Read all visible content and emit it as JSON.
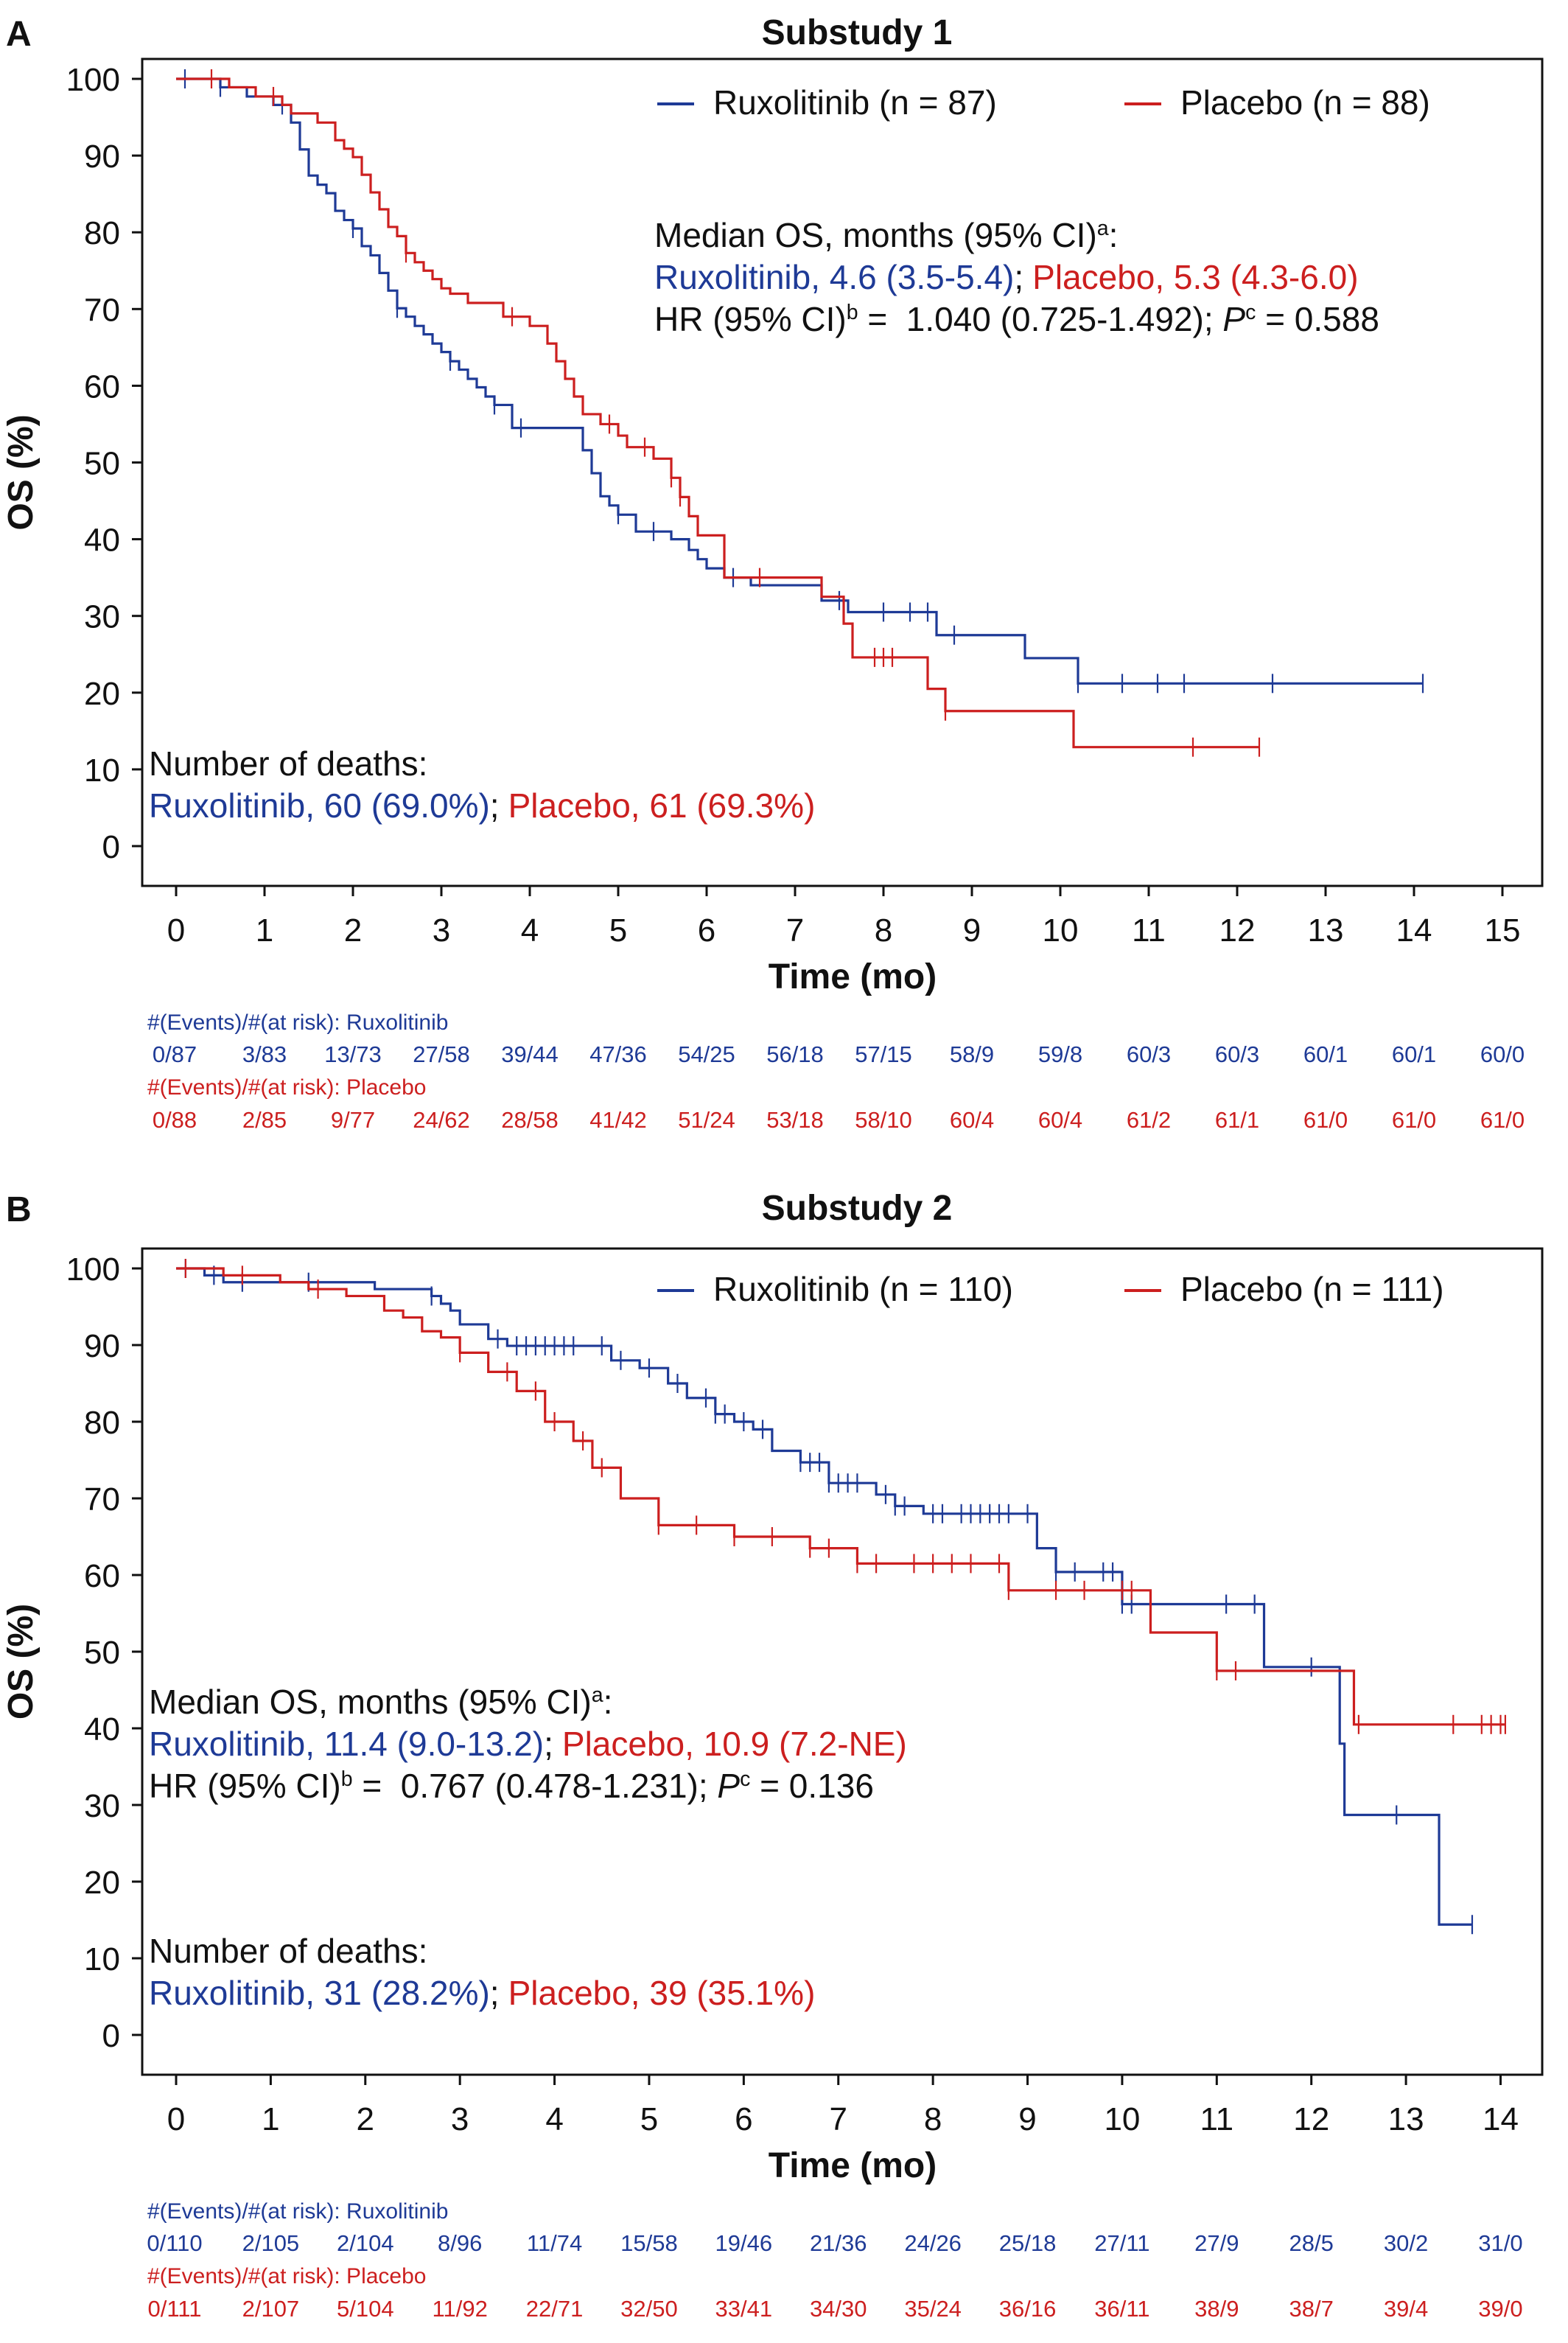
{
  "colors": {
    "ruxolitinib": "#1e3a96",
    "placebo": "#cc1f1f",
    "text": "#111111",
    "axis": "#111111"
  },
  "common": {
    "xlabel": "Time (mo)",
    "ylabel": "OS (%)",
    "yticks": [
      "0",
      "10",
      "20",
      "30",
      "40",
      "50",
      "60",
      "70",
      "80",
      "90",
      "100"
    ],
    "risk_label_rux": "#(Events)/#(at risk): Ruxolitinib",
    "risk_label_pbo": "#(Events)/#(at risk): Placebo",
    "median_title": "Median OS, months (95% CI)",
    "median_sup": "a",
    "deaths_title": "Number of deaths:",
    "sep": ";",
    "hr_prefix": "HR (95% CI)",
    "hr_sup_b": "b",
    "p_letter": "P",
    "p_sup": "c"
  },
  "chart_data": [
    {
      "panel_letter": "A",
      "title": "Substudy 1",
      "type": "line",
      "xlim": [
        0,
        15.3
      ],
      "ylim": [
        0,
        100
      ],
      "xticks": [
        "0",
        "1",
        "2",
        "3",
        "4",
        "5",
        "6",
        "7",
        "8",
        "9",
        "10",
        "11",
        "12",
        "13",
        "14",
        "15"
      ],
      "legend": {
        "rux": "Ruxolitinib (n = 87)",
        "pbo": "Placebo (n = 88)"
      },
      "median_rux": "Ruxolitinib, 4.6 (3.5-5.4)",
      "median_pbo": "Placebo, 5.3 (4.3-6.0)",
      "hr_value": " =  1.040 (0.725-1.492); ",
      "p_value": " = 0.588",
      "deaths_rux": "Ruxolitinib, 60 (69.0%)",
      "deaths_pbo": "Placebo, 61 (69.3%)",
      "risk_rux": [
        "0/87",
        "3/83",
        "13/73",
        "27/58",
        "39/44",
        "47/36",
        "54/25",
        "56/18",
        "57/15",
        "58/9",
        "59/8",
        "60/3",
        "60/3",
        "60/1",
        "60/1",
        "60/0"
      ],
      "risk_pbo": [
        "0/88",
        "2/85",
        "9/77",
        "24/62",
        "28/58",
        "41/42",
        "51/24",
        "53/18",
        "58/10",
        "60/4",
        "60/4",
        "61/2",
        "61/1",
        "61/0",
        "61/0",
        "61/0"
      ],
      "series": [
        {
          "name": "Ruxolitinib (n = 87)",
          "key": "rux",
          "x": [
            0,
            0.5,
            0.8,
            1.1,
            1.3,
            1.4,
            1.5,
            1.6,
            1.7,
            1.8,
            1.9,
            2.0,
            2.1,
            2.2,
            2.3,
            2.4,
            2.5,
            2.6,
            2.7,
            2.8,
            2.9,
            3.0,
            3.1,
            3.2,
            3.3,
            3.4,
            3.5,
            3.6,
            3.8,
            3.9,
            4.0,
            4.6,
            4.7,
            4.8,
            4.9,
            5.0,
            5.2,
            5.6,
            5.8,
            5.9,
            6.0,
            6.2,
            6.5,
            7.3,
            7.6,
            8.6,
            9.6,
            10.2,
            14.1
          ],
          "y": [
            100,
            98.9,
            97.7,
            96.6,
            94.3,
            90.8,
            87.4,
            86.2,
            85.1,
            82.8,
            81.6,
            80.5,
            78.2,
            77.0,
            74.7,
            72.4,
            70.1,
            69.0,
            67.8,
            66.7,
            65.5,
            64.4,
            63.2,
            62.1,
            60.9,
            59.8,
            58.6,
            57.5,
            54.5,
            54.5,
            54.5,
            51.6,
            48.6,
            45.6,
            44.4,
            43.2,
            41.0,
            40.0,
            38.6,
            37.4,
            36.2,
            35.0,
            34.0,
            32.0,
            30.5,
            27.5,
            24.5,
            21.2,
            21.2
          ],
          "censor_x": [
            0.1,
            0.5,
            1.2,
            2.0,
            2.5,
            3.1,
            3.6,
            3.9,
            5.0,
            5.4,
            6.3,
            7.5,
            8.0,
            8.3,
            8.5,
            8.8,
            10.2,
            10.7,
            11.1,
            11.4,
            12.4,
            14.1
          ]
        },
        {
          "name": "Placebo (n = 88)",
          "key": "pbo",
          "x": [
            0,
            0.6,
            0.9,
            1.2,
            1.3,
            1.6,
            1.8,
            1.9,
            2.0,
            2.1,
            2.2,
            2.3,
            2.4,
            2.5,
            2.6,
            2.7,
            2.8,
            2.9,
            3.0,
            3.1,
            3.3,
            3.7,
            4.0,
            4.2,
            4.3,
            4.4,
            4.5,
            4.6,
            4.8,
            5.0,
            5.1,
            5.4,
            5.6,
            5.7,
            5.8,
            5.9,
            6.2,
            7.3,
            7.55,
            7.65,
            8.5,
            8.7,
            10.15,
            12.25
          ],
          "y": [
            100,
            98.9,
            97.7,
            96.6,
            95.5,
            94.3,
            92.0,
            90.9,
            89.8,
            87.5,
            85.2,
            83.0,
            80.7,
            79.5,
            77.3,
            76.1,
            75.0,
            73.9,
            72.7,
            72.0,
            70.8,
            69.0,
            67.8,
            65.5,
            63.2,
            60.9,
            58.6,
            56.3,
            55.0,
            53.5,
            52.0,
            50.5,
            48.0,
            45.5,
            43.0,
            40.5,
            35.0,
            32.5,
            29.0,
            24.6,
            20.5,
            17.6,
            12.9,
            12.9
          ],
          "censor_x": [
            0.4,
            1.1,
            2.6,
            3.8,
            4.9,
            5.3,
            5.6,
            5.7,
            6.6,
            7.9,
            8.0,
            8.1,
            8.7,
            11.5,
            12.25
          ]
        }
      ]
    },
    {
      "panel_letter": "B",
      "title": "Substudy 2",
      "type": "line",
      "xlim": [
        0,
        14.3
      ],
      "ylim": [
        0,
        100
      ],
      "xticks": [
        "0",
        "1",
        "2",
        "3",
        "4",
        "5",
        "6",
        "7",
        "8",
        "9",
        "10",
        "11",
        "12",
        "13",
        "14"
      ],
      "legend": {
        "rux": "Ruxolitinib (n = 110)",
        "pbo": "Placebo (n = 111)"
      },
      "median_rux": "Ruxolitinib, 11.4 (9.0-13.2)",
      "median_pbo": "Placebo, 10.9 (7.2-NE)",
      "hr_value": " =  0.767 (0.478-1.231); ",
      "p_value": " = 0.136",
      "deaths_rux": "Ruxolitinib, 31 (28.2%)",
      "deaths_pbo": "Placebo, 39 (35.1%)",
      "risk_rux": [
        "0/110",
        "2/105",
        "2/104",
        "8/96",
        "11/74",
        "15/58",
        "19/46",
        "21/36",
        "24/26",
        "25/18",
        "27/11",
        "27/9",
        "28/5",
        "30/2",
        "31/0"
      ],
      "risk_pbo": [
        "0/111",
        "2/107",
        "5/104",
        "11/92",
        "22/71",
        "32/50",
        "33/41",
        "34/30",
        "35/24",
        "36/16",
        "36/11",
        "38/9",
        "38/7",
        "39/4",
        "39/0"
      ],
      "series": [
        {
          "name": "Ruxolitinib (n = 110)",
          "key": "rux",
          "x": [
            0,
            0.3,
            0.5,
            2.1,
            2.7,
            2.8,
            2.9,
            3.0,
            3.3,
            3.5,
            3.7,
            4.6,
            4.9,
            5.2,
            5.4,
            5.7,
            5.9,
            6.1,
            6.3,
            6.6,
            6.9,
            7.4,
            7.6,
            7.9,
            9.1,
            9.3,
            10.0,
            11.5,
            12.3,
            12.35,
            12.9,
            13.35,
            13.7
          ],
          "y": [
            100,
            99.1,
            98.2,
            97.3,
            96.4,
            95.4,
            94.5,
            92.7,
            90.8,
            89.9,
            89.9,
            88.0,
            87.0,
            85.0,
            83.1,
            81.0,
            80.0,
            79.0,
            76.2,
            74.7,
            72.0,
            70.5,
            69.0,
            68.0,
            63.5,
            60.4,
            56.2,
            48.0,
            38.0,
            28.7,
            28.7,
            14.4,
            14.4
          ],
          "censor_x": [
            0.1,
            0.4,
            0.7,
            1.4,
            2.7,
            3.4,
            3.6,
            3.7,
            3.8,
            3.9,
            4.0,
            4.1,
            4.2,
            4.5,
            4.7,
            5.0,
            5.3,
            5.6,
            5.7,
            5.8,
            6.0,
            6.2,
            6.6,
            6.7,
            6.8,
            6.9,
            7.0,
            7.1,
            7.2,
            7.5,
            7.6,
            7.7,
            8.0,
            8.1,
            8.3,
            8.4,
            8.5,
            8.6,
            8.7,
            8.8,
            9.0,
            9.3,
            9.5,
            9.8,
            9.9,
            10.0,
            10.1,
            10.3,
            11.1,
            11.4,
            12.0,
            12.9,
            13.7
          ]
        },
        {
          "name": "Placebo (n = 111)",
          "key": "pbo",
          "x": [
            0,
            0.5,
            1.1,
            1.4,
            1.8,
            2.2,
            2.4,
            2.6,
            2.8,
            3.0,
            3.3,
            3.6,
            3.9,
            4.2,
            4.4,
            4.7,
            5.1,
            5.9,
            6.7,
            7.2,
            8.8,
            10.3,
            11.0,
            12.45,
            14.05
          ],
          "y": [
            100,
            99.1,
            98.2,
            97.3,
            96.4,
            94.5,
            93.6,
            91.8,
            91.0,
            89.0,
            86.5,
            84.0,
            80.0,
            77.5,
            74.0,
            70.0,
            66.5,
            65.0,
            63.5,
            61.5,
            58.0,
            52.5,
            47.5,
            40.5,
            40.5
          ],
          "censor_x": [
            0.1,
            0.7,
            1.5,
            3.0,
            3.5,
            3.8,
            4.0,
            4.3,
            4.5,
            5.1,
            5.5,
            5.9,
            6.3,
            6.7,
            6.9,
            7.2,
            7.4,
            7.8,
            8.0,
            8.2,
            8.4,
            8.7,
            8.8,
            9.3,
            9.6,
            10.0,
            10.1,
            11.0,
            11.2,
            12.5,
            13.5,
            13.8,
            13.9,
            14.0,
            14.05
          ]
        }
      ]
    }
  ]
}
